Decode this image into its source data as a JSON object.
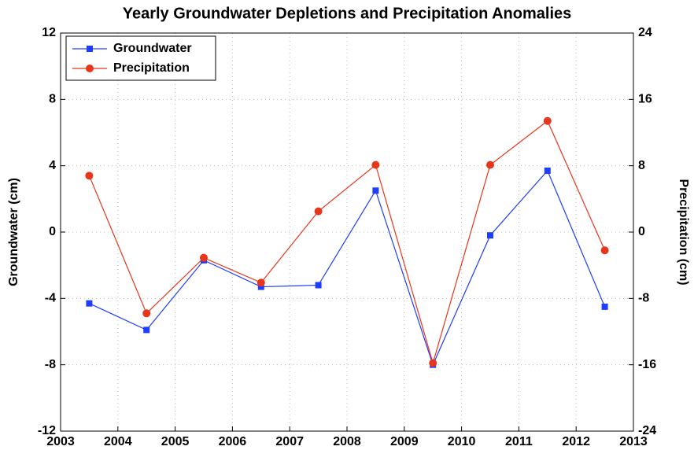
{
  "chart_data": {
    "type": "line",
    "title": "Yearly Groundwater Depletions and Precipitation Anomalies",
    "ylabel": "Groundwater (cm)",
    "y2label": "Precipitation (cm)",
    "x": [
      2003.5,
      2004.5,
      2005.5,
      2006.5,
      2007.5,
      2008.5,
      2009.5,
      2010.5,
      2011.5,
      2012.5
    ],
    "xlim": [
      2003,
      2013
    ],
    "xticks": [
      2003,
      2004,
      2005,
      2006,
      2007,
      2008,
      2009,
      2010,
      2011,
      2012,
      2013
    ],
    "ylim": [
      -12,
      12
    ],
    "yticks": [
      -12,
      -8,
      -4,
      0,
      4,
      8,
      12
    ],
    "y2lim": [
      -24,
      24
    ],
    "y2ticks": [
      -24,
      -16,
      -8,
      0,
      8,
      16,
      24
    ],
    "grid": true,
    "legend": "upper left",
    "series": [
      {
        "name": "Groundwater",
        "color": "#1f3dff",
        "marker": "square",
        "values": [
          -4.3,
          -5.9,
          -1.7,
          -3.3,
          -3.2,
          2.5,
          -8.0,
          -0.2,
          3.7,
          -4.5
        ]
      },
      {
        "name": "Precipitation",
        "color": "#e8361c",
        "marker": "circle",
        "axis": "y2",
        "values": [
          6.8,
          -9.8,
          -3.1,
          -6.1,
          2.5,
          8.1,
          -15.8,
          8.1,
          13.4,
          -2.2
        ]
      }
    ]
  }
}
